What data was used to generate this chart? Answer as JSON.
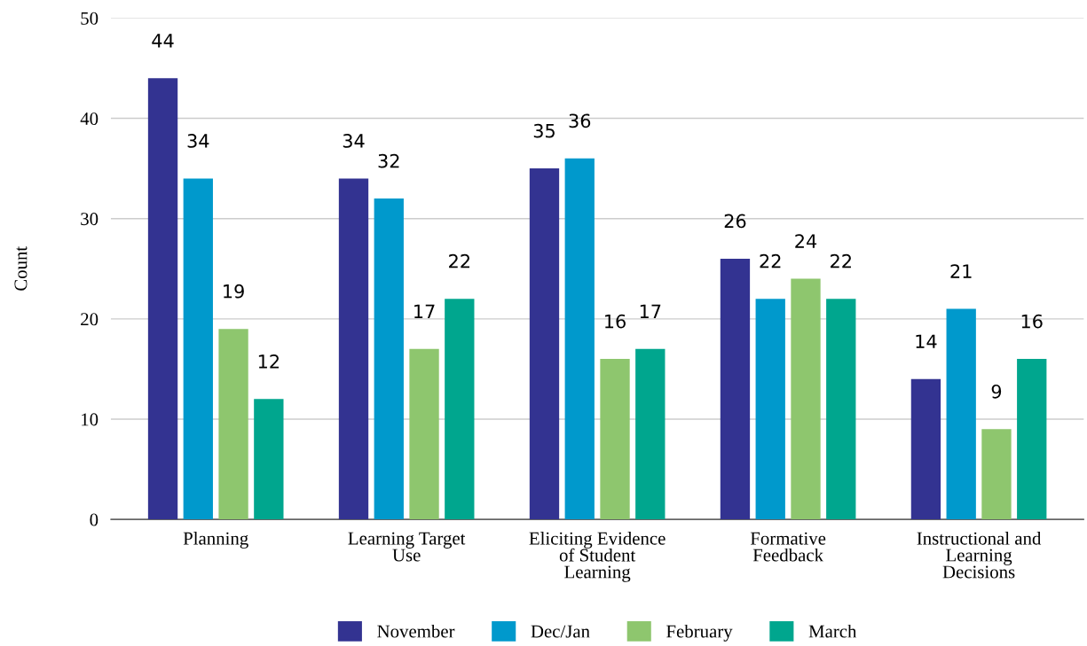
{
  "chart_data": {
    "type": "bar",
    "ylabel": "Count",
    "categories": [
      "Planning",
      "Learning Target\nUse",
      "Eliciting Evidence\nof Student\nLearning",
      "Formative\nFeedback",
      "Instructional and\nLearning\nDecisions"
    ],
    "series": [
      {
        "name": "November",
        "color": "#333391",
        "values": [
          44,
          34,
          35,
          26,
          14
        ]
      },
      {
        "name": "Dec/Jan",
        "color": "#0099cc",
        "values": [
          34,
          32,
          36,
          22,
          21
        ]
      },
      {
        "name": "February",
        "color": "#8ec66e",
        "values": [
          19,
          17,
          16,
          24,
          9
        ]
      },
      {
        "name": "March",
        "color": "#00a68e",
        "values": [
          12,
          22,
          17,
          22,
          16
        ]
      }
    ],
    "ylim": [
      0,
      50
    ],
    "yticks": [
      0,
      10,
      20,
      30,
      40,
      50
    ],
    "grid": "y",
    "legend": "bottom",
    "data_labels": true
  }
}
